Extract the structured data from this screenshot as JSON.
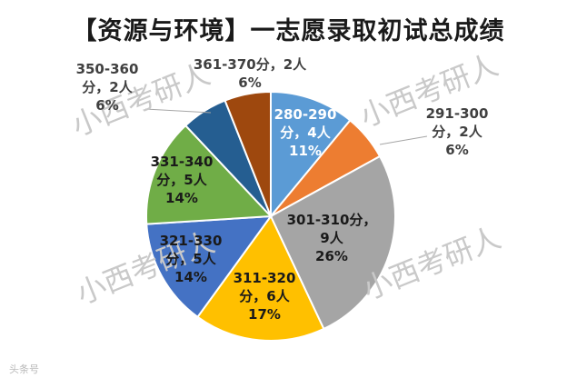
{
  "title": "【资源与环境】一志愿录取初试总成绩",
  "chart_data": {
    "type": "pie",
    "title": "【资源与环境】一志愿录取初试总成绩",
    "slices": [
      {
        "range": "280-290",
        "count_text": "分，4人",
        "percent_text": "11%",
        "value": 11,
        "color": "#5b9bd5"
      },
      {
        "range": "291-300",
        "count_text": "分，2人",
        "percent_text": "6%",
        "value": 6,
        "color": "#ed7d31"
      },
      {
        "range": "301-310分，",
        "count_text": "9人",
        "percent_text": "26%",
        "value": 26,
        "color": "#a5a5a5"
      },
      {
        "range": "311-320",
        "count_text": "分，6人",
        "percent_text": "17%",
        "value": 17,
        "color": "#ffc000"
      },
      {
        "range": "321-330",
        "count_text": "分，5人",
        "percent_text": "14%",
        "value": 14,
        "color": "#4472c4"
      },
      {
        "range": "331-340",
        "count_text": "分，5人",
        "percent_text": "14%",
        "value": 14,
        "color": "#70ad47"
      },
      {
        "range": "350-360",
        "count_text": "分，2人",
        "percent_text": "6%",
        "value": 6,
        "color": "#255e91"
      },
      {
        "range": "361-370分，2人",
        "count_text": "",
        "percent_text": "6%",
        "value": 6,
        "color": "#9e480e"
      }
    ]
  },
  "watermark": "小西考研人",
  "footer_mark": "头条号"
}
